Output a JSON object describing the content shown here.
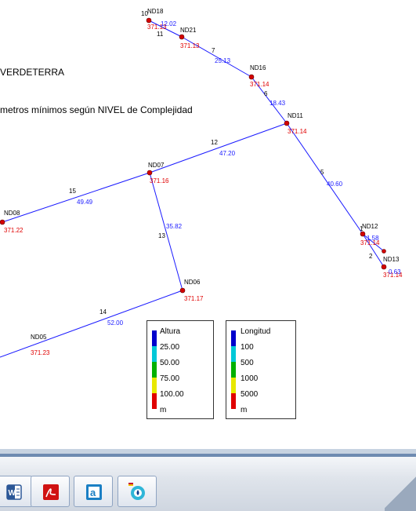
{
  "document": {
    "title_fragment": "VERDETERRA",
    "subtitle_fragment": "metros mínimos según NIVEL de Complejidad"
  },
  "network": {
    "link_color": "#1a1aff",
    "node_color": "#e00000",
    "node_labels": {
      "nd16": "ND16",
      "nd11": "ND11",
      "nd07": "ND07",
      "nd08": "ND08",
      "nd06": "ND06",
      "nd05": "ND05",
      "nd12": "ND12",
      "nd13": "ND13",
      "nd18": "ND18",
      "nd21": "ND21"
    },
    "node_values": {
      "nd16": "371.14",
      "nd11": "371.14",
      "nd07": "371.16",
      "nd08": "371.22",
      "nd06": "371.17",
      "nd05": "371.23",
      "nd12": "371.14",
      "nd13": "371.14",
      "nd18": "371.13",
      "nd21": "371.13"
    },
    "link_ids": {
      "l7": "7",
      "l6": "6",
      "l5": "5",
      "l12": "12",
      "l15": "15",
      "l13": "13",
      "l14": "14",
      "l10": "10",
      "l11": "11",
      "l1": "1",
      "l2": "2"
    },
    "link_lengths": {
      "l7": "25.13",
      "l6": "18.43",
      "l5": "40.60",
      "l12": "47.20",
      "l15": "49.49",
      "l13": "35.82",
      "l14": "52.00",
      "l10": "12.02",
      "l1": "1.58",
      "l2": "0.63"
    }
  },
  "legend_altura": {
    "title": "Altura",
    "values": [
      "25.00",
      "50.00",
      "75.00",
      "100.00"
    ],
    "unit": "m",
    "colors": [
      "#0000cc",
      "#00c8d8",
      "#00b000",
      "#e8e800",
      "#e00000"
    ]
  },
  "legend_longitud": {
    "title": "Longitud",
    "values": [
      "100",
      "500",
      "1000",
      "5000"
    ],
    "unit": "m",
    "colors": [
      "#0000cc",
      "#00c8d8",
      "#00b000",
      "#e8e800",
      "#e00000"
    ]
  },
  "taskbar": {
    "items": [
      {
        "icon": "word-icon"
      },
      {
        "icon": "pdf-icon"
      },
      {
        "icon": "autocad-icon"
      },
      {
        "icon": "epanet-icon"
      }
    ]
  }
}
